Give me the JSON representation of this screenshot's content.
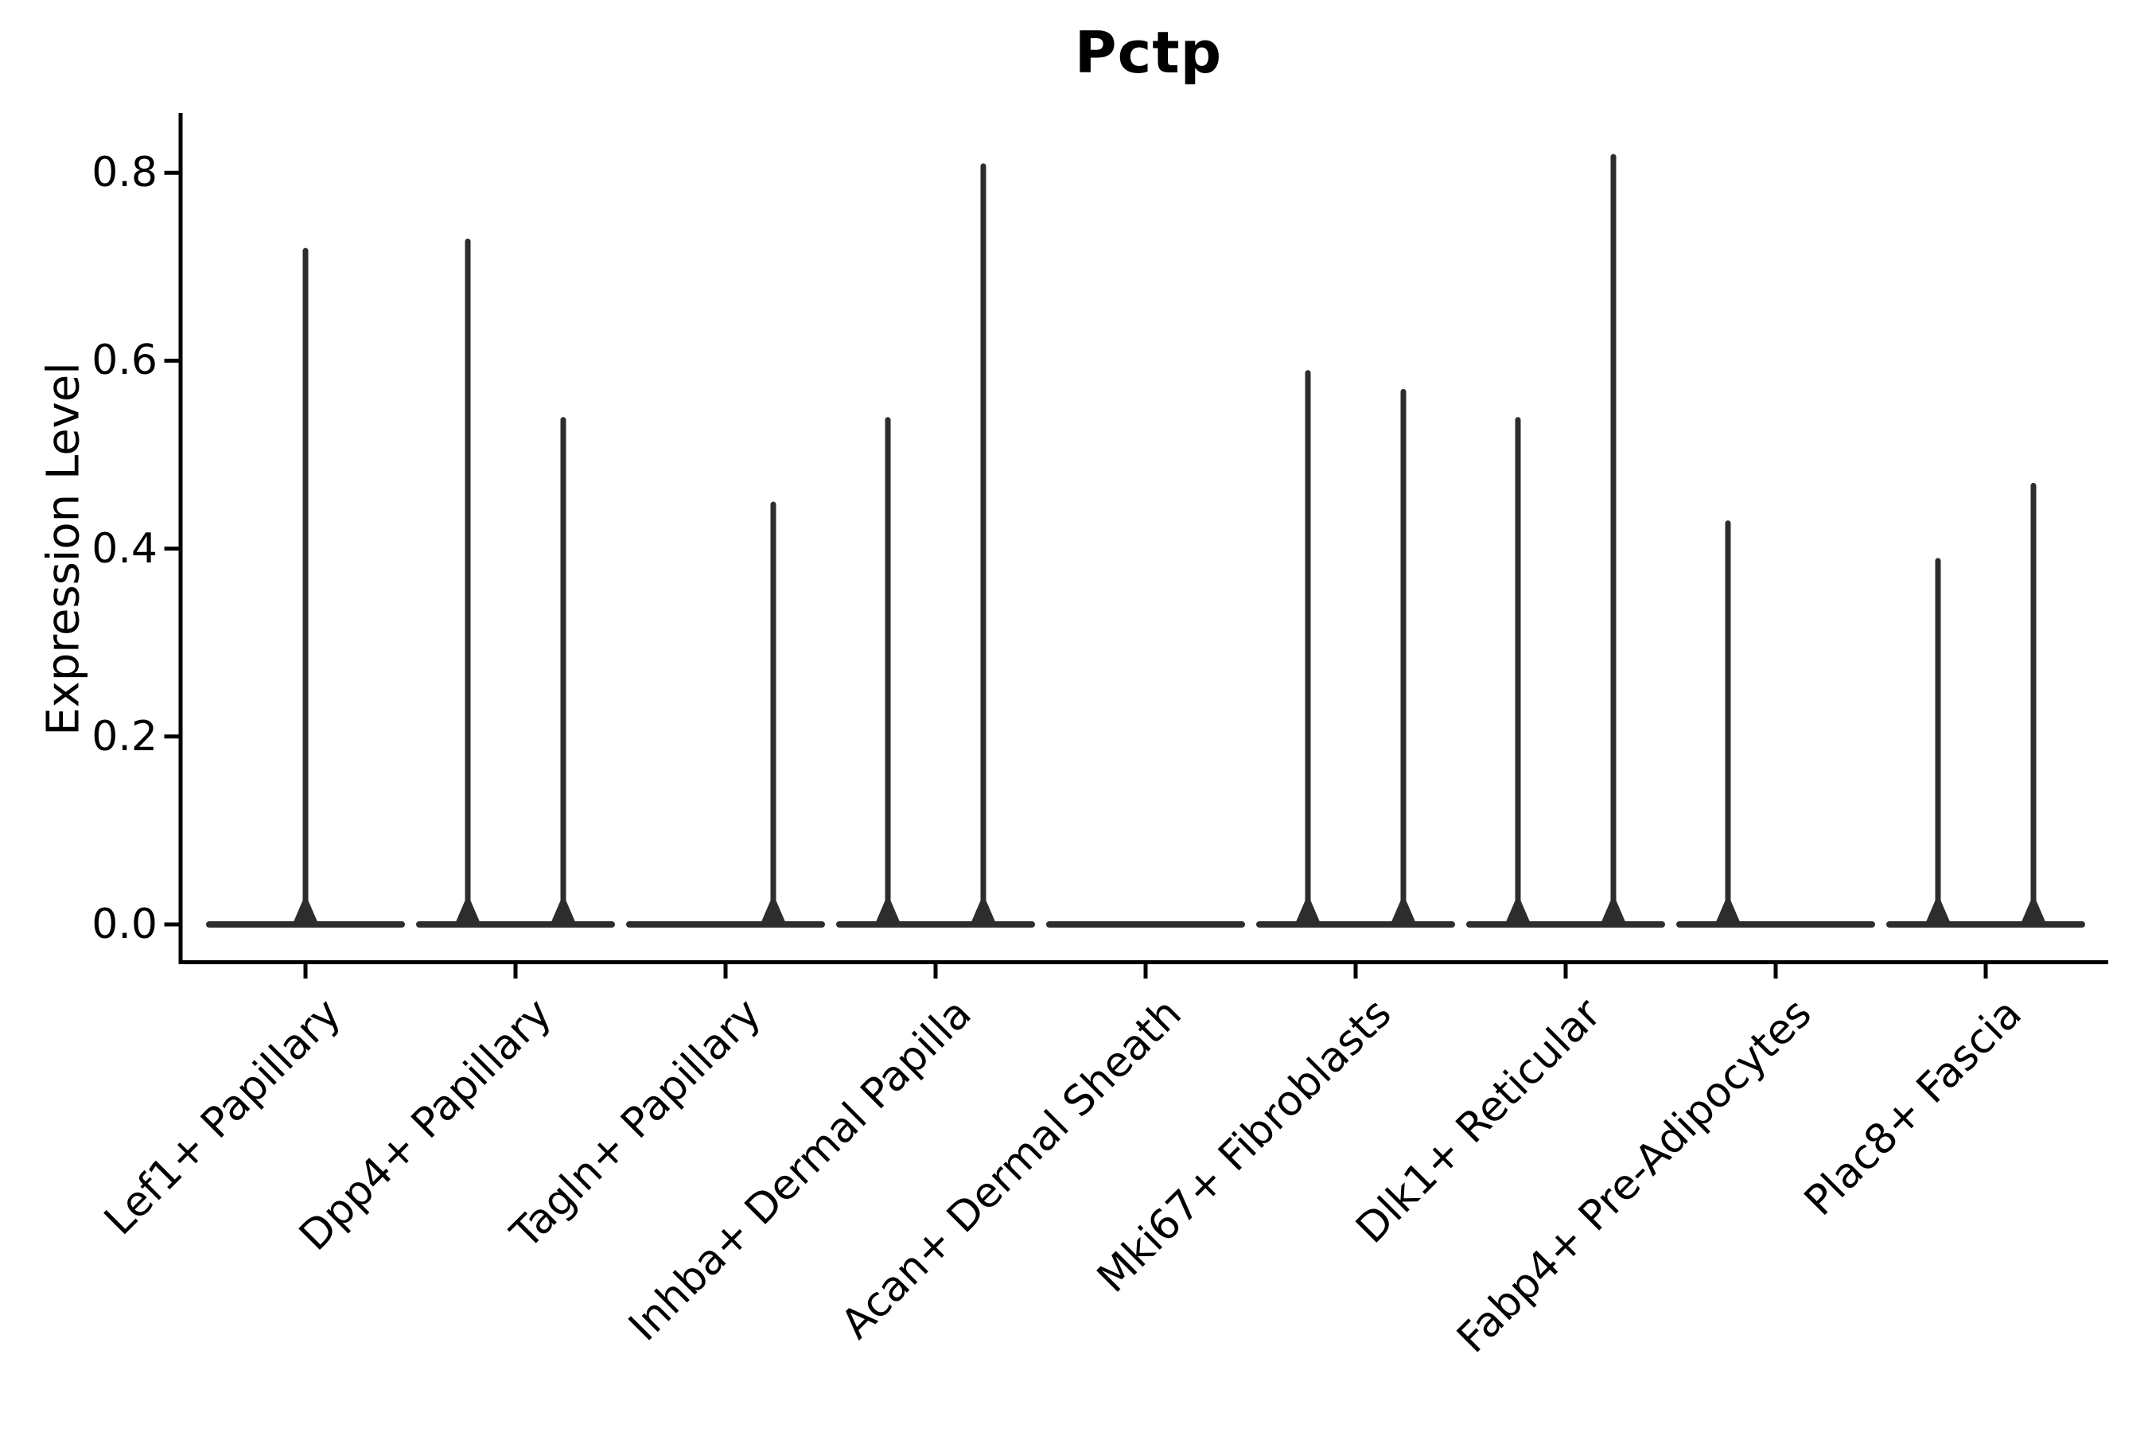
{
  "chart_data": {
    "type": "violin",
    "title": "Pctp",
    "xlabel": "",
    "ylabel": "Expression Level",
    "legend": "none",
    "grid": false,
    "ylim": [
      0,
      0.864
    ],
    "ytick_values": [
      0.0,
      0.2,
      0.4,
      0.6,
      0.8
    ],
    "ytick_labels": [
      "0.0",
      "0.2",
      "0.4",
      "0.6",
      "0.8"
    ],
    "baseline_value": 0.0,
    "violin_color": "#2d2d2d",
    "axis_color": "#000000",
    "categories": [
      "Lef1+ Papillary",
      "Dpp4+ Papillary",
      "Tagln+ Papillary",
      "Inhba+ Dermal Papilla",
      "Acan+ Dermal Sheath",
      "Mki67+ Fibroblasts",
      "Dlk1+ Reticular",
      "Fabp4+ Pre-Adipocytes",
      "Plac8+ Fascia"
    ],
    "violins": [
      {
        "category": "Lef1+ Papillary",
        "spikes": [
          {
            "position": "center",
            "peak": 0.72
          }
        ]
      },
      {
        "category": "Dpp4+ Papillary",
        "spikes": [
          {
            "position": "left",
            "peak": 0.73
          },
          {
            "position": "right",
            "peak": 0.54
          }
        ]
      },
      {
        "category": "Tagln+ Papillary",
        "spikes": [
          {
            "position": "right",
            "peak": 0.45
          }
        ]
      },
      {
        "category": "Inhba+ Dermal Papilla",
        "spikes": [
          {
            "position": "left",
            "peak": 0.54
          },
          {
            "position": "right",
            "peak": 0.81
          }
        ]
      },
      {
        "category": "Acan+ Dermal Sheath",
        "spikes": []
      },
      {
        "category": "Mki67+ Fibroblasts",
        "spikes": [
          {
            "position": "left",
            "peak": 0.59
          },
          {
            "position": "right",
            "peak": 0.57
          }
        ]
      },
      {
        "category": "Dlk1+ Reticular",
        "spikes": [
          {
            "position": "left",
            "peak": 0.54
          },
          {
            "position": "right",
            "peak": 0.82
          }
        ]
      },
      {
        "category": "Fabp4+ Pre-Adipocytes",
        "spikes": [
          {
            "position": "left",
            "peak": 0.43
          }
        ]
      },
      {
        "category": "Plac8+ Fascia",
        "spikes": [
          {
            "position": "left",
            "peak": 0.39
          },
          {
            "position": "right",
            "peak": 0.47
          }
        ]
      }
    ]
  }
}
